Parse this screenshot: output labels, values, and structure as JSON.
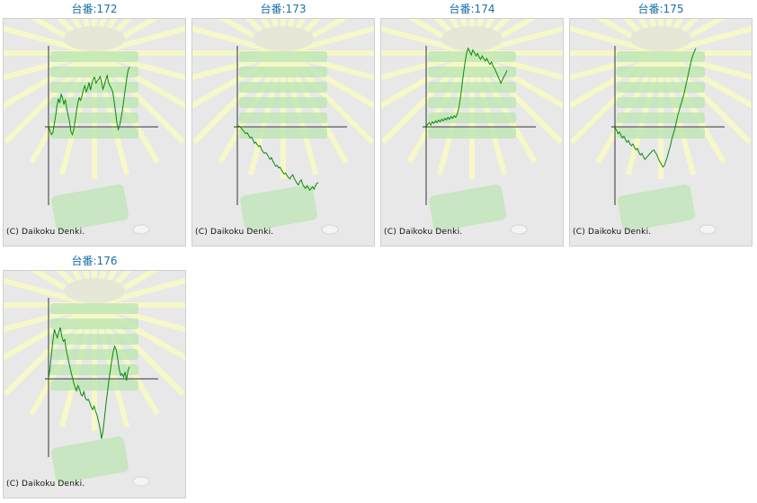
{
  "credit": "(C) Daikoku Denki.",
  "colors": {
    "title": "#1a6fa8",
    "line": "#0a8a0a",
    "axis": "#333333",
    "panel_bg": "#e8e8e8",
    "decor": "#f6f8c8",
    "decor_green": "#b9e6b0"
  },
  "chart_data": [
    {
      "type": "line",
      "title": "台番:172",
      "axis_x_fraction": 0.325,
      "values": [
        0.02,
        -0.05,
        -0.09,
        -0.07,
        0.02,
        0.12,
        0.24,
        0.33,
        0.28,
        0.38,
        0.34,
        0.26,
        0.32,
        0.22,
        0.14,
        0.06,
        -0.05,
        -0.09,
        -0.04,
        0.07,
        0.18,
        0.28,
        0.34,
        0.31,
        0.36,
        0.44,
        0.48,
        0.41,
        0.45,
        0.52,
        0.43,
        0.5,
        0.56,
        0.58,
        0.51,
        0.54,
        0.56,
        0.59,
        0.52,
        0.44,
        0.49,
        0.55,
        0.6,
        0.52,
        0.48,
        0.45,
        0.41,
        0.3,
        0.18,
        0.05,
        -0.03,
        0.02,
        0.1,
        0.2,
        0.32,
        0.44,
        0.56,
        0.66,
        0.7
      ]
    },
    {
      "type": "line",
      "title": "台番:173",
      "axis_x_fraction": 0.325,
      "values": [
        0.0,
        0.01,
        0.0,
        -0.02,
        -0.04,
        -0.06,
        -0.08,
        -0.07,
        -0.1,
        -0.13,
        -0.12,
        -0.15,
        -0.19,
        -0.18,
        -0.21,
        -0.23,
        -0.22,
        -0.26,
        -0.29,
        -0.31,
        -0.3,
        -0.32,
        -0.35,
        -0.38,
        -0.36,
        -0.4,
        -0.43,
        -0.46,
        -0.45,
        -0.48,
        -0.47,
        -0.5,
        -0.53,
        -0.55,
        -0.54,
        -0.57,
        -0.59,
        -0.61,
        -0.58,
        -0.56,
        -0.6,
        -0.63,
        -0.66,
        -0.68,
        -0.64,
        -0.62,
        -0.67,
        -0.7,
        -0.72,
        -0.69,
        -0.71,
        -0.74,
        -0.72,
        -0.7,
        -0.73,
        -0.69,
        -0.66,
        -0.65
      ]
    },
    {
      "type": "line",
      "title": "台番:174",
      "axis_x_fraction": 0.325,
      "values": [
        0.0,
        0.03,
        0.05,
        0.02,
        0.06,
        0.04,
        0.07,
        0.05,
        0.08,
        0.06,
        0.09,
        0.07,
        0.1,
        0.08,
        0.11,
        0.09,
        0.12,
        0.1,
        0.13,
        0.11,
        0.15,
        0.22,
        0.34,
        0.48,
        0.62,
        0.76,
        0.86,
        0.92,
        0.88,
        0.84,
        0.9,
        0.87,
        0.83,
        0.86,
        0.82,
        0.79,
        0.83,
        0.8,
        0.77,
        0.8,
        0.76,
        0.73,
        0.76,
        0.71,
        0.68,
        0.64,
        0.6,
        0.56,
        0.51,
        0.55,
        0.59,
        0.62,
        0.66
      ]
    },
    {
      "type": "line",
      "title": "台番:175",
      "axis_x_fraction": 0.325,
      "values": [
        0.0,
        -0.04,
        -0.08,
        -0.06,
        -0.1,
        -0.13,
        -0.11,
        -0.15,
        -0.18,
        -0.16,
        -0.2,
        -0.22,
        -0.2,
        -0.24,
        -0.27,
        -0.25,
        -0.3,
        -0.33,
        -0.31,
        -0.35,
        -0.38,
        -0.36,
        -0.34,
        -0.32,
        -0.3,
        -0.28,
        -0.27,
        -0.3,
        -0.33,
        -0.37,
        -0.41,
        -0.44,
        -0.47,
        -0.45,
        -0.4,
        -0.35,
        -0.28,
        -0.22,
        -0.14,
        -0.08,
        -0.02,
        0.06,
        0.14,
        0.2,
        0.26,
        0.32,
        0.38,
        0.46,
        0.54,
        0.62,
        0.7,
        0.78,
        0.84,
        0.88,
        0.92
      ]
    },
    {
      "type": "line",
      "title": "台番:176",
      "axis_x_fraction": 0.325,
      "values": [
        0.0,
        0.12,
        0.3,
        0.45,
        0.58,
        0.52,
        0.48,
        0.55,
        0.6,
        0.5,
        0.44,
        0.46,
        0.34,
        0.26,
        0.18,
        0.1,
        0.03,
        -0.04,
        -0.1,
        -0.14,
        -0.08,
        -0.12,
        -0.18,
        -0.2,
        -0.15,
        -0.22,
        -0.25,
        -0.24,
        -0.28,
        -0.33,
        -0.36,
        -0.32,
        -0.38,
        -0.43,
        -0.5,
        -0.58,
        -0.7,
        -0.62,
        -0.46,
        -0.3,
        -0.16,
        -0.02,
        0.1,
        0.22,
        0.32,
        0.38,
        0.34,
        0.24,
        0.12,
        0.04,
        0.06,
        0.02,
        0.08,
        -0.02,
        0.1,
        0.14
      ]
    }
  ]
}
